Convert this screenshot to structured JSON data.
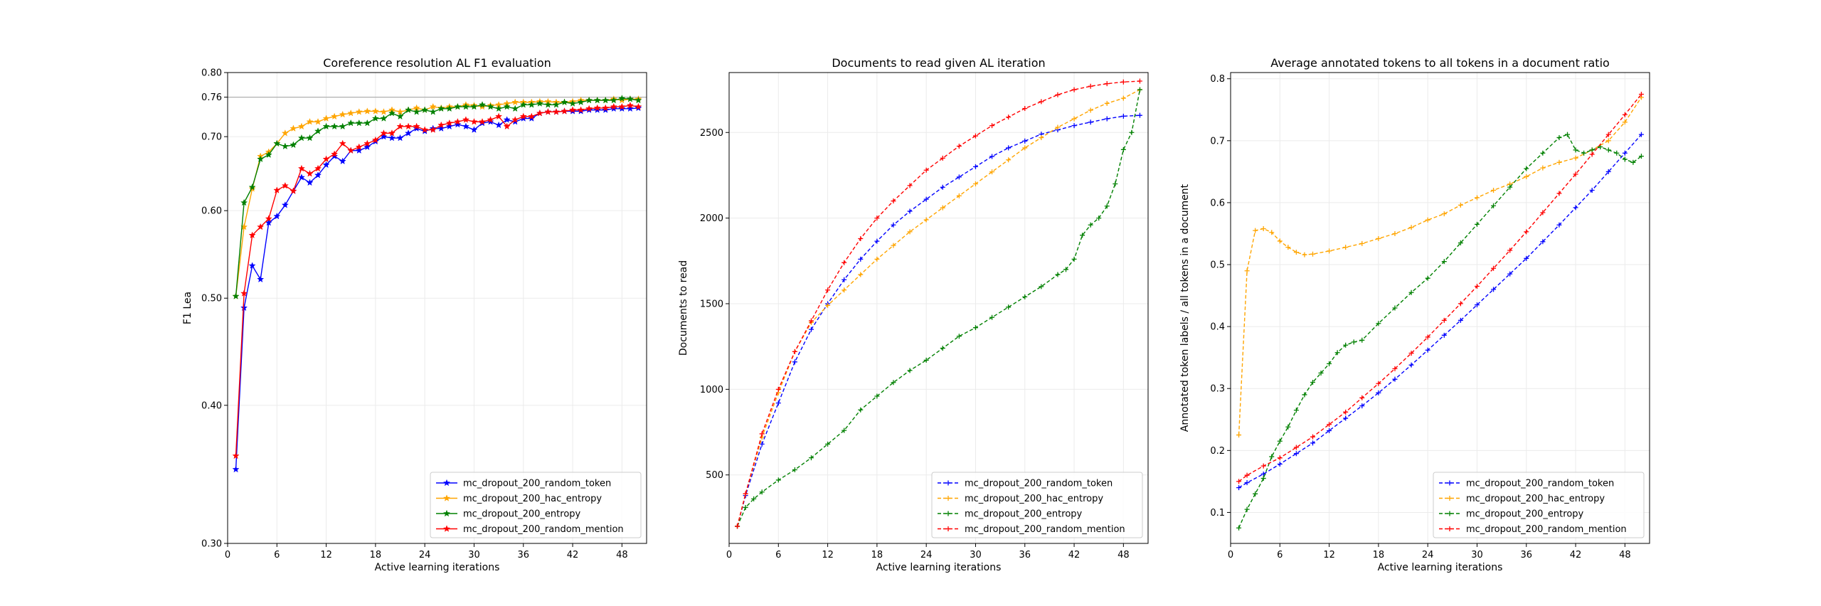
{
  "chart_data": [
    {
      "type": "line",
      "title": "Coreference resolution AL F1 evaluation",
      "xlabel": "Active learning iterations",
      "ylabel": "F1 Lea",
      "xlim": [
        0,
        51
      ],
      "ylim": [
        0.3,
        0.8
      ],
      "yscale": "log",
      "xticks": [
        0,
        6,
        12,
        18,
        24,
        30,
        36,
        42,
        48
      ],
      "yticks": [
        0.3,
        0.4,
        0.5,
        0.6,
        0.7,
        0.76,
        0.8
      ],
      "ytick_labels": [
        "0.30",
        "0.40",
        "0.50",
        "0.60",
        "0.70",
        "0.76",
        "0.80"
      ],
      "hline": 0.76,
      "grid": true,
      "legend": "lower right",
      "marker": "star",
      "x": [
        1,
        2,
        3,
        4,
        5,
        6,
        7,
        8,
        9,
        10,
        11,
        12,
        13,
        14,
        15,
        16,
        17,
        18,
        19,
        20,
        21,
        22,
        23,
        24,
        25,
        26,
        27,
        28,
        29,
        30,
        31,
        32,
        33,
        34,
        35,
        36,
        37,
        38,
        39,
        40,
        41,
        42,
        43,
        44,
        45,
        46,
        47,
        48,
        49,
        50
      ],
      "series": [
        {
          "name": "mc_dropout_200_random_token",
          "color": "#0000ff",
          "values": [
            0.35,
            0.49,
            0.535,
            0.52,
            0.585,
            0.593,
            0.607,
            0.625,
            0.643,
            0.636,
            0.646,
            0.66,
            0.672,
            0.665,
            0.68,
            0.68,
            0.685,
            0.693,
            0.7,
            0.698,
            0.698,
            0.705,
            0.712,
            0.708,
            0.712,
            0.712,
            0.715,
            0.718,
            0.715,
            0.71,
            0.72,
            0.722,
            0.717,
            0.725,
            0.722,
            0.727,
            0.727,
            0.735,
            0.737,
            0.737,
            0.738,
            0.738,
            0.738,
            0.74,
            0.74,
            0.74,
            0.742,
            0.742,
            0.742,
            0.743
          ]
        },
        {
          "name": "mc_dropout_200_hac_entropy",
          "color": "#ffa500",
          "values": [
            0.502,
            0.58,
            0.628,
            0.672,
            0.678,
            0.69,
            0.705,
            0.712,
            0.715,
            0.722,
            0.722,
            0.727,
            0.73,
            0.733,
            0.735,
            0.737,
            0.738,
            0.738,
            0.737,
            0.74,
            0.737,
            0.74,
            0.743,
            0.74,
            0.745,
            0.743,
            0.745,
            0.745,
            0.748,
            0.747,
            0.745,
            0.747,
            0.748,
            0.75,
            0.752,
            0.752,
            0.752,
            0.753,
            0.753,
            0.752,
            0.752,
            0.753,
            0.755,
            0.755,
            0.755,
            0.755,
            0.757,
            0.755,
            0.757,
            0.757
          ]
        },
        {
          "name": "mc_dropout_200_entropy",
          "color": "#008000",
          "values": [
            0.502,
            0.61,
            0.63,
            0.668,
            0.674,
            0.69,
            0.686,
            0.688,
            0.698,
            0.698,
            0.708,
            0.715,
            0.715,
            0.715,
            0.72,
            0.72,
            0.72,
            0.727,
            0.727,
            0.735,
            0.73,
            0.74,
            0.737,
            0.74,
            0.737,
            0.742,
            0.742,
            0.745,
            0.745,
            0.745,
            0.748,
            0.745,
            0.742,
            0.745,
            0.742,
            0.748,
            0.748,
            0.75,
            0.748,
            0.748,
            0.752,
            0.75,
            0.752,
            0.755,
            0.755,
            0.755,
            0.755,
            0.758,
            0.757,
            0.755
          ]
        },
        {
          "name": "mc_dropout_200_random_mention",
          "color": "#ff0000",
          "values": [
            0.36,
            0.505,
            0.57,
            0.58,
            0.59,
            0.626,
            0.632,
            0.625,
            0.655,
            0.648,
            0.655,
            0.668,
            0.675,
            0.69,
            0.68,
            0.685,
            0.69,
            0.695,
            0.705,
            0.705,
            0.715,
            0.715,
            0.715,
            0.71,
            0.71,
            0.717,
            0.72,
            0.722,
            0.725,
            0.722,
            0.722,
            0.725,
            0.73,
            0.715,
            0.725,
            0.73,
            0.73,
            0.735,
            0.737,
            0.737,
            0.738,
            0.74,
            0.74,
            0.742,
            0.743,
            0.743,
            0.745,
            0.745,
            0.747,
            0.745
          ]
        }
      ]
    },
    {
      "type": "line",
      "title": "Documents to read given AL iteration",
      "xlabel": "Active learning iterations",
      "ylabel": "Documents to read",
      "xlim": [
        0,
        51
      ],
      "ylim": [
        100,
        2850
      ],
      "xticks": [
        0,
        6,
        12,
        18,
        24,
        30,
        36,
        42,
        48
      ],
      "yticks": [
        500,
        1000,
        1500,
        2000,
        2500
      ],
      "grid": true,
      "legend": "lower right",
      "marker": "plus",
      "series": [
        {
          "name": "mc_dropout_200_random_token",
          "color": "#0000ff",
          "x": [
            1,
            2,
            4,
            6,
            8,
            10,
            12,
            14,
            16,
            18,
            20,
            22,
            24,
            26,
            28,
            30,
            32,
            34,
            36,
            38,
            40,
            42,
            44,
            46,
            48,
            50
          ],
          "values": [
            200,
            380,
            680,
            920,
            1160,
            1350,
            1500,
            1640,
            1760,
            1865,
            1960,
            2040,
            2110,
            2180,
            2240,
            2300,
            2360,
            2410,
            2450,
            2490,
            2515,
            2540,
            2560,
            2580,
            2595,
            2600
          ]
        },
        {
          "name": "mc_dropout_200_hac_entropy",
          "color": "#ffa500",
          "x": [
            1,
            2,
            4,
            6,
            8,
            10,
            12,
            14,
            16,
            18,
            20,
            22,
            24,
            26,
            28,
            30,
            32,
            34,
            36,
            38,
            40,
            42,
            44,
            46,
            48,
            50
          ],
          "values": [
            200,
            390,
            720,
            980,
            1220,
            1390,
            1490,
            1580,
            1670,
            1760,
            1840,
            1920,
            1990,
            2060,
            2130,
            2200,
            2270,
            2340,
            2410,
            2470,
            2530,
            2580,
            2630,
            2670,
            2700,
            2750
          ]
        },
        {
          "name": "mc_dropout_200_entropy",
          "color": "#008000",
          "x": [
            1,
            2,
            3,
            4,
            6,
            8,
            10,
            12,
            14,
            16,
            18,
            20,
            22,
            24,
            26,
            28,
            30,
            32,
            34,
            36,
            38,
            40,
            41,
            42,
            43,
            44,
            45,
            46,
            47,
            48,
            49,
            50
          ],
          "values": [
            200,
            310,
            360,
            400,
            470,
            530,
            600,
            680,
            760,
            880,
            960,
            1040,
            1110,
            1170,
            1240,
            1310,
            1360,
            1420,
            1480,
            1540,
            1600,
            1670,
            1700,
            1760,
            1900,
            1960,
            2000,
            2070,
            2200,
            2400,
            2500,
            2750
          ]
        },
        {
          "name": "mc_dropout_200_random_mention",
          "color": "#ff0000",
          "x": [
            1,
            2,
            4,
            6,
            8,
            10,
            12,
            14,
            16,
            18,
            20,
            22,
            24,
            26,
            28,
            30,
            32,
            34,
            36,
            38,
            40,
            42,
            44,
            46,
            48,
            50
          ],
          "values": [
            200,
            390,
            740,
            1000,
            1220,
            1400,
            1580,
            1740,
            1880,
            2000,
            2100,
            2190,
            2280,
            2350,
            2420,
            2480,
            2540,
            2590,
            2640,
            2680,
            2720,
            2750,
            2770,
            2785,
            2795,
            2800
          ]
        }
      ]
    },
    {
      "type": "line",
      "title": "Average annotated tokens to all tokens in a document ratio",
      "xlabel": "Active learning iterations",
      "ylabel": "Annotated token labels / all tokens in a document",
      "xlim": [
        0,
        51
      ],
      "ylim": [
        0.05,
        0.81
      ],
      "xticks": [
        0,
        6,
        12,
        18,
        24,
        30,
        36,
        42,
        48
      ],
      "yticks": [
        0.1,
        0.2,
        0.3,
        0.4,
        0.5,
        0.6,
        0.7,
        0.8
      ],
      "grid": true,
      "legend": "lower right",
      "marker": "plus",
      "series": [
        {
          "name": "mc_dropout_200_random_token",
          "color": "#0000ff",
          "x": [
            1,
            2,
            4,
            6,
            8,
            10,
            12,
            14,
            16,
            18,
            20,
            22,
            24,
            26,
            28,
            30,
            32,
            34,
            36,
            38,
            40,
            42,
            44,
            46,
            48,
            50
          ],
          "values": [
            0.14,
            0.148,
            0.162,
            0.178,
            0.195,
            0.212,
            0.232,
            0.252,
            0.272,
            0.293,
            0.315,
            0.338,
            0.362,
            0.386,
            0.41,
            0.435,
            0.46,
            0.485,
            0.51,
            0.537,
            0.564,
            0.592,
            0.62,
            0.65,
            0.68,
            0.71
          ]
        },
        {
          "name": "mc_dropout_200_hac_entropy",
          "color": "#ffa500",
          "x": [
            1,
            2,
            3,
            4,
            5,
            6,
            7,
            8,
            9,
            10,
            12,
            14,
            16,
            18,
            20,
            22,
            24,
            26,
            28,
            30,
            32,
            34,
            36,
            38,
            40,
            42,
            44,
            46,
            48,
            50
          ],
          "values": [
            0.225,
            0.49,
            0.555,
            0.558,
            0.552,
            0.538,
            0.528,
            0.52,
            0.516,
            0.517,
            0.522,
            0.528,
            0.534,
            0.542,
            0.55,
            0.56,
            0.572,
            0.582,
            0.596,
            0.608,
            0.62,
            0.63,
            0.642,
            0.656,
            0.665,
            0.672,
            0.685,
            0.7,
            0.73,
            0.77
          ]
        },
        {
          "name": "mc_dropout_200_entropy",
          "color": "#008000",
          "x": [
            1,
            2,
            3,
            4,
            5,
            6,
            7,
            8,
            9,
            10,
            11,
            12,
            13,
            14,
            15,
            16,
            18,
            20,
            22,
            24,
            26,
            28,
            30,
            32,
            34,
            36,
            38,
            40,
            41,
            42,
            43,
            44,
            45,
            46,
            47,
            48,
            49,
            50
          ],
          "values": [
            0.075,
            0.105,
            0.13,
            0.155,
            0.19,
            0.215,
            0.238,
            0.265,
            0.29,
            0.31,
            0.325,
            0.34,
            0.358,
            0.37,
            0.375,
            0.378,
            0.405,
            0.43,
            0.455,
            0.478,
            0.505,
            0.535,
            0.565,
            0.595,
            0.625,
            0.655,
            0.68,
            0.705,
            0.71,
            0.685,
            0.68,
            0.685,
            0.69,
            0.685,
            0.68,
            0.67,
            0.665,
            0.675
          ]
        },
        {
          "name": "mc_dropout_200_random_mention",
          "color": "#ff0000",
          "x": [
            1,
            2,
            4,
            6,
            8,
            10,
            12,
            14,
            16,
            18,
            20,
            22,
            24,
            26,
            28,
            30,
            32,
            34,
            36,
            38,
            40,
            42,
            44,
            46,
            48,
            50
          ],
          "values": [
            0.15,
            0.16,
            0.175,
            0.188,
            0.205,
            0.222,
            0.242,
            0.262,
            0.285,
            0.308,
            0.332,
            0.357,
            0.383,
            0.41,
            0.437,
            0.465,
            0.494,
            0.523,
            0.553,
            0.584,
            0.615,
            0.646,
            0.678,
            0.71,
            0.742,
            0.775
          ]
        }
      ]
    }
  ]
}
